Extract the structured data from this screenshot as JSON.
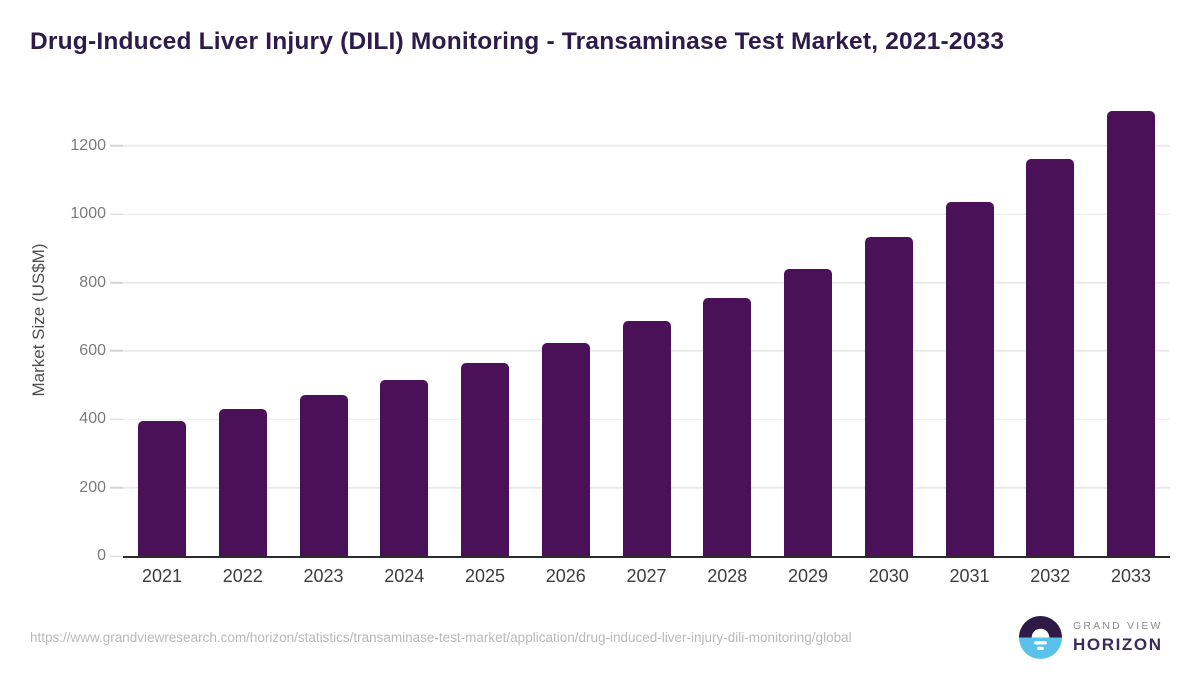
{
  "header": {
    "title": "Drug-Induced Liver Injury (DILI) Monitoring - Transaminase Test Market, 2021-2033"
  },
  "chart_data": {
    "type": "bar",
    "title": "Drug-Induced Liver Injury (DILI) Monitoring - Transaminase Test Market, 2021-2033",
    "categories": [
      "2021",
      "2022",
      "2023",
      "2024",
      "2025",
      "2026",
      "2027",
      "2028",
      "2029",
      "2030",
      "2031",
      "2032",
      "2033"
    ],
    "values": [
      395,
      430,
      470,
      515,
      565,
      622,
      688,
      755,
      840,
      932,
      1037,
      1160,
      1302
    ],
    "xlabel": "",
    "ylabel": "Market Size (US$M)",
    "ylim": [
      0,
      1334
    ],
    "yticks": [
      0,
      200,
      400,
      600,
      800,
      1000,
      1200
    ],
    "grid": "horizontal",
    "legend": "none",
    "bar_color": "#4a1158"
  },
  "footer": {
    "source_url": "https://www.grandviewresearch.com/horizon/statistics/transaminase-test-market/application/drug-induced-liver-injury-dili-monitoring/global",
    "logo": {
      "top_text": "GRAND VIEW",
      "bottom_text": "HORIZON"
    }
  },
  "colors": {
    "bar": "#4a1158",
    "title_text": "#2d1b4a",
    "logo_purple": "#2e1a47",
    "logo_blue": "#59c1ea",
    "logo_horizon_text": "#3a2b5f",
    "url_text": "#b9b9b9",
    "axis_line": "#2b2b2b",
    "gridline": "#eaeaea"
  }
}
